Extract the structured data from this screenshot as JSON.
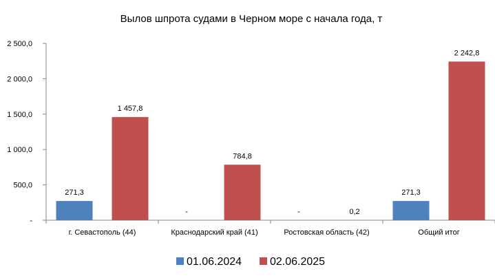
{
  "chart_data": {
    "type": "bar",
    "title": "Вылов шпрота судами в Черном море с начала  года, т",
    "categories": [
      "г. Севастополь (44)",
      "Краснодарский край (41)",
      "Ростовская область (42)",
      "Общий итог"
    ],
    "series": [
      {
        "name": "01.06.2024",
        "color": "#4F81BD",
        "values": [
          271.3,
          0,
          0,
          271.3
        ],
        "labels": [
          "271,3",
          "-",
          "-",
          "271,3"
        ]
      },
      {
        "name": "02.06.2025",
        "color": "#C0504D",
        "values": [
          1457.8,
          784.8,
          0.2,
          2242.8
        ],
        "labels": [
          "1 457,8",
          "784,8",
          "0,2",
          "2 242,8"
        ]
      }
    ],
    "ylim": [
      0,
      2500
    ],
    "yticks": [
      0,
      500,
      1000,
      1500,
      2000,
      2500
    ],
    "ytick_labels": [
      "-",
      "500,0",
      "1 000,0",
      "1 500,0",
      "2 000,0",
      "2 500,0"
    ],
    "xlabel": "",
    "ylabel": "",
    "grid": false,
    "legend": "bottom"
  }
}
